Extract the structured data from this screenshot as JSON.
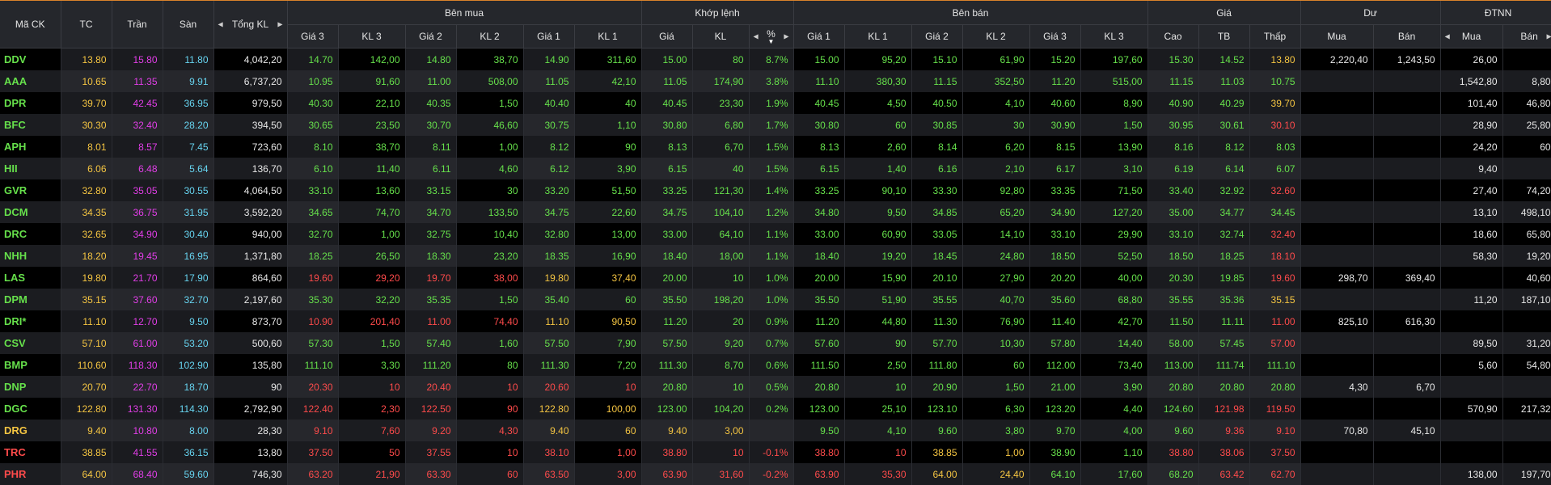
{
  "headers": {
    "symbol": "Mã CK",
    "ref": "TC",
    "ceil": "Trần",
    "floor": "Sàn",
    "total_vol": "Tổng KL",
    "buy_group": "Bên mua",
    "match_group": "Khớp lệnh",
    "sell_group": "Bên bán",
    "price_group": "Giá",
    "residual_group": "Dư",
    "foreign_group": "ĐTNN",
    "buy_cols": [
      "Giá 3",
      "KL 3",
      "Giá 2",
      "KL 2",
      "Giá 1",
      "KL 1"
    ],
    "match_cols": [
      "Giá",
      "KL",
      "%"
    ],
    "sell_cols": [
      "Giá 1",
      "KL 1",
      "Giá 2",
      "KL 2",
      "Giá 3",
      "KL 3"
    ],
    "price_cols": [
      "Cao",
      "TB",
      "Thấp"
    ],
    "residual_cols": [
      "Mua",
      "Bán"
    ],
    "foreign_cols": [
      "Mua",
      "Bán"
    ]
  },
  "icons": {
    "left": "caret-left-icon",
    "right": "caret-right-icon",
    "sort": "sort-desc-icon"
  },
  "colors": {
    "up": "#66e04b",
    "down": "#ff4b4b",
    "ref": "#f5c542",
    "ceil": "#e23ee8",
    "floor": "#67d4f0",
    "accent": "#d9822b"
  },
  "rows": [
    {
      "sym": "DDV",
      "sc": "up",
      "tc": "13.80",
      "tran": "15.80",
      "san": "11.80",
      "tkl": "4,042,20",
      "b3": "14.70",
      "bv3": "142,00",
      "b3c": "up",
      "b2": "14.80",
      "bv2": "38,70",
      "b2c": "up",
      "b1": "14.90",
      "bv1": "311,60",
      "b1c": "up",
      "mp": "15.00",
      "mv": "80",
      "mpct": "8.7%",
      "mc": "up",
      "s1": "15.00",
      "sv1": "95,20",
      "s1c": "up",
      "s2": "15.10",
      "sv2": "61,90",
      "s2c": "up",
      "s3": "15.20",
      "sv3": "197,60",
      "s3c": "up",
      "hi": "15.30",
      "hic": "up",
      "avg": "14.52",
      "avgc": "up",
      "lo": "13.80",
      "loc": "ref",
      "rb": "2,220,40",
      "rs": "1,243,50",
      "fb": "26,00",
      "fs": ""
    },
    {
      "sym": "AAA",
      "sc": "up",
      "tc": "10.65",
      "tran": "11.35",
      "san": "9.91",
      "tkl": "6,737,20",
      "b3": "10.95",
      "bv3": "91,60",
      "b3c": "up",
      "b2": "11.00",
      "bv2": "508,00",
      "b2c": "up",
      "b1": "11.05",
      "bv1": "42,10",
      "b1c": "up",
      "mp": "11.05",
      "mv": "174,90",
      "mpct": "3.8%",
      "mc": "up",
      "s1": "11.10",
      "sv1": "380,30",
      "s1c": "up",
      "s2": "11.15",
      "sv2": "352,50",
      "s2c": "up",
      "s3": "11.20",
      "sv3": "515,00",
      "s3c": "up",
      "hi": "11.15",
      "hic": "up",
      "avg": "11.03",
      "avgc": "up",
      "lo": "10.75",
      "loc": "up",
      "rb": "",
      "rs": "",
      "fb": "1,542,80",
      "fs": "8,80"
    },
    {
      "sym": "DPR",
      "sc": "up",
      "tc": "39.70",
      "tran": "42.45",
      "san": "36.95",
      "tkl": "979,50",
      "b3": "40.30",
      "bv3": "22,10",
      "b3c": "up",
      "b2": "40.35",
      "bv2": "1,50",
      "b2c": "up",
      "b1": "40.40",
      "bv1": "40",
      "b1c": "up",
      "mp": "40.45",
      "mv": "23,30",
      "mpct": "1.9%",
      "mc": "up",
      "s1": "40.45",
      "sv1": "4,50",
      "s1c": "up",
      "s2": "40.50",
      "sv2": "4,10",
      "s2c": "up",
      "s3": "40.60",
      "sv3": "8,90",
      "s3c": "up",
      "hi": "40.90",
      "hic": "up",
      "avg": "40.29",
      "avgc": "up",
      "lo": "39.70",
      "loc": "ref",
      "rb": "",
      "rs": "",
      "fb": "101,40",
      "fs": "46,80"
    },
    {
      "sym": "BFC",
      "sc": "up",
      "tc": "30.30",
      "tran": "32.40",
      "san": "28.20",
      "tkl": "394,50",
      "b3": "30.65",
      "bv3": "23,50",
      "b3c": "up",
      "b2": "30.70",
      "bv2": "46,60",
      "b2c": "up",
      "b1": "30.75",
      "bv1": "1,10",
      "b1c": "up",
      "mp": "30.80",
      "mv": "6,80",
      "mpct": "1.7%",
      "mc": "up",
      "s1": "30.80",
      "sv1": "60",
      "s1c": "up",
      "s2": "30.85",
      "sv2": "30",
      "s2c": "up",
      "s3": "30.90",
      "sv3": "1,50",
      "s3c": "up",
      "hi": "30.95",
      "hic": "up",
      "avg": "30.61",
      "avgc": "up",
      "lo": "30.10",
      "loc": "dn",
      "rb": "",
      "rs": "",
      "fb": "28,90",
      "fs": "25,80"
    },
    {
      "sym": "APH",
      "sc": "up",
      "tc": "8.01",
      "tran": "8.57",
      "san": "7.45",
      "tkl": "723,60",
      "b3": "8.10",
      "bv3": "38,70",
      "b3c": "up",
      "b2": "8.11",
      "bv2": "1,00",
      "b2c": "up",
      "b1": "8.12",
      "bv1": "90",
      "b1c": "up",
      "mp": "8.13",
      "mv": "6,70",
      "mpct": "1.5%",
      "mc": "up",
      "s1": "8.13",
      "sv1": "2,60",
      "s1c": "up",
      "s2": "8.14",
      "sv2": "6,20",
      "s2c": "up",
      "s3": "8.15",
      "sv3": "13,90",
      "s3c": "up",
      "hi": "8.16",
      "hic": "up",
      "avg": "8.12",
      "avgc": "up",
      "lo": "8.03",
      "loc": "up",
      "rb": "",
      "rs": "",
      "fb": "24,20",
      "fs": "60"
    },
    {
      "sym": "HII",
      "sc": "up",
      "tc": "6.06",
      "tran": "6.48",
      "san": "5.64",
      "tkl": "136,70",
      "b3": "6.10",
      "bv3": "11,40",
      "b3c": "up",
      "b2": "6.11",
      "bv2": "4,60",
      "b2c": "up",
      "b1": "6.12",
      "bv1": "3,90",
      "b1c": "up",
      "mp": "6.15",
      "mv": "40",
      "mpct": "1.5%",
      "mc": "up",
      "s1": "6.15",
      "sv1": "1,40",
      "s1c": "up",
      "s2": "6.16",
      "sv2": "2,10",
      "s2c": "up",
      "s3": "6.17",
      "sv3": "3,10",
      "s3c": "up",
      "hi": "6.19",
      "hic": "up",
      "avg": "6.14",
      "avgc": "up",
      "lo": "6.07",
      "loc": "up",
      "rb": "",
      "rs": "",
      "fb": "9,40",
      "fs": ""
    },
    {
      "sym": "GVR",
      "sc": "up",
      "tc": "32.80",
      "tran": "35.05",
      "san": "30.55",
      "tkl": "4,064,50",
      "b3": "33.10",
      "bv3": "13,60",
      "b3c": "up",
      "b2": "33.15",
      "bv2": "30",
      "b2c": "up",
      "b1": "33.20",
      "bv1": "51,50",
      "b1c": "up",
      "mp": "33.25",
      "mv": "121,30",
      "mpct": "1.4%",
      "mc": "up",
      "s1": "33.25",
      "sv1": "90,10",
      "s1c": "up",
      "s2": "33.30",
      "sv2": "92,80",
      "s2c": "up",
      "s3": "33.35",
      "sv3": "71,50",
      "s3c": "up",
      "hi": "33.40",
      "hic": "up",
      "avg": "32.92",
      "avgc": "up",
      "lo": "32.60",
      "loc": "dn",
      "rb": "",
      "rs": "",
      "fb": "27,40",
      "fs": "74,20"
    },
    {
      "sym": "DCM",
      "sc": "up",
      "tc": "34.35",
      "tran": "36.75",
      "san": "31.95",
      "tkl": "3,592,20",
      "b3": "34.65",
      "bv3": "74,70",
      "b3c": "up",
      "b2": "34.70",
      "bv2": "133,50",
      "b2c": "up",
      "b1": "34.75",
      "bv1": "22,60",
      "b1c": "up",
      "mp": "34.75",
      "mv": "104,10",
      "mpct": "1.2%",
      "mc": "up",
      "s1": "34.80",
      "sv1": "9,50",
      "s1c": "up",
      "s2": "34.85",
      "sv2": "65,20",
      "s2c": "up",
      "s3": "34.90",
      "sv3": "127,20",
      "s3c": "up",
      "hi": "35.00",
      "hic": "up",
      "avg": "34.77",
      "avgc": "up",
      "lo": "34.45",
      "loc": "up",
      "rb": "",
      "rs": "",
      "fb": "13,10",
      "fs": "498,10"
    },
    {
      "sym": "DRC",
      "sc": "up",
      "tc": "32.65",
      "tran": "34.90",
      "san": "30.40",
      "tkl": "940,00",
      "b3": "32.70",
      "bv3": "1,00",
      "b3c": "up",
      "b2": "32.75",
      "bv2": "10,40",
      "b2c": "up",
      "b1": "32.80",
      "bv1": "13,00",
      "b1c": "up",
      "mp": "33.00",
      "mv": "64,10",
      "mpct": "1.1%",
      "mc": "up",
      "s1": "33.00",
      "sv1": "60,90",
      "s1c": "up",
      "s2": "33.05",
      "sv2": "14,10",
      "s2c": "up",
      "s3": "33.10",
      "sv3": "29,90",
      "s3c": "up",
      "hi": "33.10",
      "hic": "up",
      "avg": "32.74",
      "avgc": "up",
      "lo": "32.40",
      "loc": "dn",
      "rb": "",
      "rs": "",
      "fb": "18,60",
      "fs": "65,80"
    },
    {
      "sym": "NHH",
      "sc": "up",
      "tc": "18.20",
      "tran": "19.45",
      "san": "16.95",
      "tkl": "1,371,80",
      "b3": "18.25",
      "bv3": "26,50",
      "b3c": "up",
      "b2": "18.30",
      "bv2": "23,20",
      "b2c": "up",
      "b1": "18.35",
      "bv1": "16,90",
      "b1c": "up",
      "mp": "18.40",
      "mv": "18,00",
      "mpct": "1.1%",
      "mc": "up",
      "s1": "18.40",
      "sv1": "19,20",
      "s1c": "up",
      "s2": "18.45",
      "sv2": "24,80",
      "s2c": "up",
      "s3": "18.50",
      "sv3": "52,50",
      "s3c": "up",
      "hi": "18.50",
      "hic": "up",
      "avg": "18.25",
      "avgc": "up",
      "lo": "18.10",
      "loc": "dn",
      "rb": "",
      "rs": "",
      "fb": "58,30",
      "fs": "19,20"
    },
    {
      "sym": "LAS",
      "sc": "up",
      "tc": "19.80",
      "tran": "21.70",
      "san": "17.90",
      "tkl": "864,60",
      "b3": "19.60",
      "bv3": "29,20",
      "b3c": "dn",
      "b2": "19.70",
      "bv2": "38,00",
      "b2c": "dn",
      "b1": "19.80",
      "bv1": "37,40",
      "b1c": "ref",
      "mp": "20.00",
      "mv": "10",
      "mpct": "1.0%",
      "mc": "up",
      "s1": "20.00",
      "sv1": "15,90",
      "s1c": "up",
      "s2": "20.10",
      "sv2": "27,90",
      "s2c": "up",
      "s3": "20.20",
      "sv3": "40,00",
      "s3c": "up",
      "hi": "20.30",
      "hic": "up",
      "avg": "19.85",
      "avgc": "up",
      "lo": "19.60",
      "loc": "dn",
      "rb": "298,70",
      "rs": "369,40",
      "fb": "",
      "fs": "40,60"
    },
    {
      "sym": "DPM",
      "sc": "up",
      "tc": "35.15",
      "tran": "37.60",
      "san": "32.70",
      "tkl": "2,197,60",
      "b3": "35.30",
      "bv3": "32,20",
      "b3c": "up",
      "b2": "35.35",
      "bv2": "1,50",
      "b2c": "up",
      "b1": "35.40",
      "bv1": "60",
      "b1c": "up",
      "mp": "35.50",
      "mv": "198,20",
      "mpct": "1.0%",
      "mc": "up",
      "s1": "35.50",
      "sv1": "51,90",
      "s1c": "up",
      "s2": "35.55",
      "sv2": "40,70",
      "s2c": "up",
      "s3": "35.60",
      "sv3": "68,80",
      "s3c": "up",
      "hi": "35.55",
      "hic": "up",
      "avg": "35.36",
      "avgc": "up",
      "lo": "35.15",
      "loc": "ref",
      "rb": "",
      "rs": "",
      "fb": "11,20",
      "fs": "187,10"
    },
    {
      "sym": "DRI*",
      "sc": "up",
      "tc": "11.10",
      "tran": "12.70",
      "san": "9.50",
      "tkl": "873,70",
      "b3": "10.90",
      "bv3": "201,40",
      "b3c": "dn",
      "b2": "11.00",
      "bv2": "74,40",
      "b2c": "dn",
      "b1": "11.10",
      "bv1": "90,50",
      "b1c": "ref",
      "mp": "11.20",
      "mv": "20",
      "mpct": "0.9%",
      "mc": "up",
      "s1": "11.20",
      "sv1": "44,80",
      "s1c": "up",
      "s2": "11.30",
      "sv2": "76,90",
      "s2c": "up",
      "s3": "11.40",
      "sv3": "42,70",
      "s3c": "up",
      "hi": "11.50",
      "hic": "up",
      "avg": "11.11",
      "avgc": "up",
      "lo": "11.00",
      "loc": "dn",
      "rb": "825,10",
      "rs": "616,30",
      "fb": "",
      "fs": ""
    },
    {
      "sym": "CSV",
      "sc": "up",
      "tc": "57.10",
      "tran": "61.00",
      "san": "53.20",
      "tkl": "500,60",
      "b3": "57.30",
      "bv3": "1,50",
      "b3c": "up",
      "b2": "57.40",
      "bv2": "1,60",
      "b2c": "up",
      "b1": "57.50",
      "bv1": "7,90",
      "b1c": "up",
      "mp": "57.50",
      "mv": "9,20",
      "mpct": "0.7%",
      "mc": "up",
      "s1": "57.60",
      "sv1": "90",
      "s1c": "up",
      "s2": "57.70",
      "sv2": "10,30",
      "s2c": "up",
      "s3": "57.80",
      "sv3": "14,40",
      "s3c": "up",
      "hi": "58.00",
      "hic": "up",
      "avg": "57.45",
      "avgc": "up",
      "lo": "57.00",
      "loc": "dn",
      "rb": "",
      "rs": "",
      "fb": "89,50",
      "fs": "31,20"
    },
    {
      "sym": "BMP",
      "sc": "up",
      "tc": "110.60",
      "tran": "118.30",
      "san": "102.90",
      "tkl": "135,80",
      "b3": "111.10",
      "bv3": "3,30",
      "b3c": "up",
      "b2": "111.20",
      "bv2": "80",
      "b2c": "up",
      "b1": "111.30",
      "bv1": "7,20",
      "b1c": "up",
      "mp": "111.30",
      "mv": "8,70",
      "mpct": "0.6%",
      "mc": "up",
      "s1": "111.50",
      "sv1": "2,50",
      "s1c": "up",
      "s2": "111.80",
      "sv2": "60",
      "s2c": "up",
      "s3": "112.00",
      "sv3": "73,40",
      "s3c": "up",
      "hi": "113.00",
      "hic": "up",
      "avg": "111.74",
      "avgc": "up",
      "lo": "111.10",
      "loc": "up",
      "rb": "",
      "rs": "",
      "fb": "5,60",
      "fs": "54,80"
    },
    {
      "sym": "DNP",
      "sc": "up",
      "tc": "20.70",
      "tran": "22.70",
      "san": "18.70",
      "tkl": "90",
      "b3": "20.30",
      "bv3": "10",
      "b3c": "dn",
      "b2": "20.40",
      "bv2": "10",
      "b2c": "dn",
      "b1": "20.60",
      "bv1": "10",
      "b1c": "dn",
      "mp": "20.80",
      "mv": "10",
      "mpct": "0.5%",
      "mc": "up",
      "s1": "20.80",
      "sv1": "10",
      "s1c": "up",
      "s2": "20.90",
      "sv2": "1,50",
      "s2c": "up",
      "s3": "21.00",
      "sv3": "3,90",
      "s3c": "up",
      "hi": "20.80",
      "hic": "up",
      "avg": "20.80",
      "avgc": "up",
      "lo": "20.80",
      "loc": "up",
      "rb": "4,30",
      "rs": "6,70",
      "fb": "",
      "fs": ""
    },
    {
      "sym": "DGC",
      "sc": "up",
      "tc": "122.80",
      "tran": "131.30",
      "san": "114.30",
      "tkl": "2,792,90",
      "b3": "122.40",
      "bv3": "2,30",
      "b3c": "dn",
      "b2": "122.50",
      "bv2": "90",
      "b2c": "dn",
      "b1": "122.80",
      "bv1": "100,00",
      "b1c": "ref",
      "mp": "123.00",
      "mv": "104,20",
      "mpct": "0.2%",
      "mc": "up",
      "s1": "123.00",
      "sv1": "25,10",
      "s1c": "up",
      "s2": "123.10",
      "sv2": "6,30",
      "s2c": "up",
      "s3": "123.20",
      "sv3": "4,40",
      "s3c": "up",
      "hi": "124.60",
      "hic": "up",
      "avg": "121.98",
      "avgc": "dn",
      "lo": "119.50",
      "loc": "dn",
      "rb": "",
      "rs": "",
      "fb": "570,90",
      "fs": "217,32"
    },
    {
      "sym": "DRG",
      "sc": "ref",
      "tc": "9.40",
      "tran": "10.80",
      "san": "8.00",
      "tkl": "28,30",
      "b3": "9.10",
      "bv3": "7,60",
      "b3c": "dn",
      "b2": "9.20",
      "bv2": "4,30",
      "b2c": "dn",
      "b1": "9.40",
      "bv1": "60",
      "b1c": "ref",
      "mp": "9.40",
      "mv": "3,00",
      "mpct": "",
      "mc": "ref",
      "s1": "9.50",
      "sv1": "4,10",
      "s1c": "up",
      "s2": "9.60",
      "sv2": "3,80",
      "s2c": "up",
      "s3": "9.70",
      "sv3": "4,00",
      "s3c": "up",
      "hi": "9.60",
      "hic": "up",
      "avg": "9.36",
      "avgc": "dn",
      "lo": "9.10",
      "loc": "dn",
      "rb": "70,80",
      "rs": "45,10",
      "fb": "",
      "fs": ""
    },
    {
      "sym": "TRC",
      "sc": "dn",
      "tc": "38.85",
      "tran": "41.55",
      "san": "36.15",
      "tkl": "13,80",
      "b3": "37.50",
      "bv3": "50",
      "b3c": "dn",
      "b2": "37.55",
      "bv2": "10",
      "b2c": "dn",
      "b1": "38.10",
      "bv1": "1,00",
      "b1c": "dn",
      "mp": "38.80",
      "mv": "10",
      "mpct": "-0.1%",
      "mc": "dn",
      "s1": "38.80",
      "sv1": "10",
      "s1c": "dn",
      "s2": "38.85",
      "sv2": "1,00",
      "s2c": "ref",
      "s3": "38.90",
      "sv3": "1,10",
      "s3c": "up",
      "hi": "38.80",
      "hic": "dn",
      "avg": "38.06",
      "avgc": "dn",
      "lo": "37.50",
      "loc": "dn",
      "rb": "",
      "rs": "",
      "fb": "",
      "fs": ""
    },
    {
      "sym": "PHR",
      "sc": "dn",
      "tc": "64.00",
      "tran": "68.40",
      "san": "59.60",
      "tkl": "746,30",
      "b3": "63.20",
      "bv3": "21,90",
      "b3c": "dn",
      "b2": "63.30",
      "bv2": "60",
      "b2c": "dn",
      "b1": "63.50",
      "bv1": "3,00",
      "b1c": "dn",
      "mp": "63.90",
      "mv": "31,60",
      "mpct": "-0.2%",
      "mc": "dn",
      "s1": "63.90",
      "sv1": "35,30",
      "s1c": "dn",
      "s2": "64.00",
      "sv2": "24,40",
      "s2c": "ref",
      "s3": "64.10",
      "sv3": "17,60",
      "s3c": "up",
      "hi": "68.20",
      "hic": "up",
      "avg": "63.42",
      "avgc": "dn",
      "lo": "62.70",
      "loc": "dn",
      "rb": "",
      "rs": "",
      "fb": "138,00",
      "fs": "197,70"
    }
  ]
}
